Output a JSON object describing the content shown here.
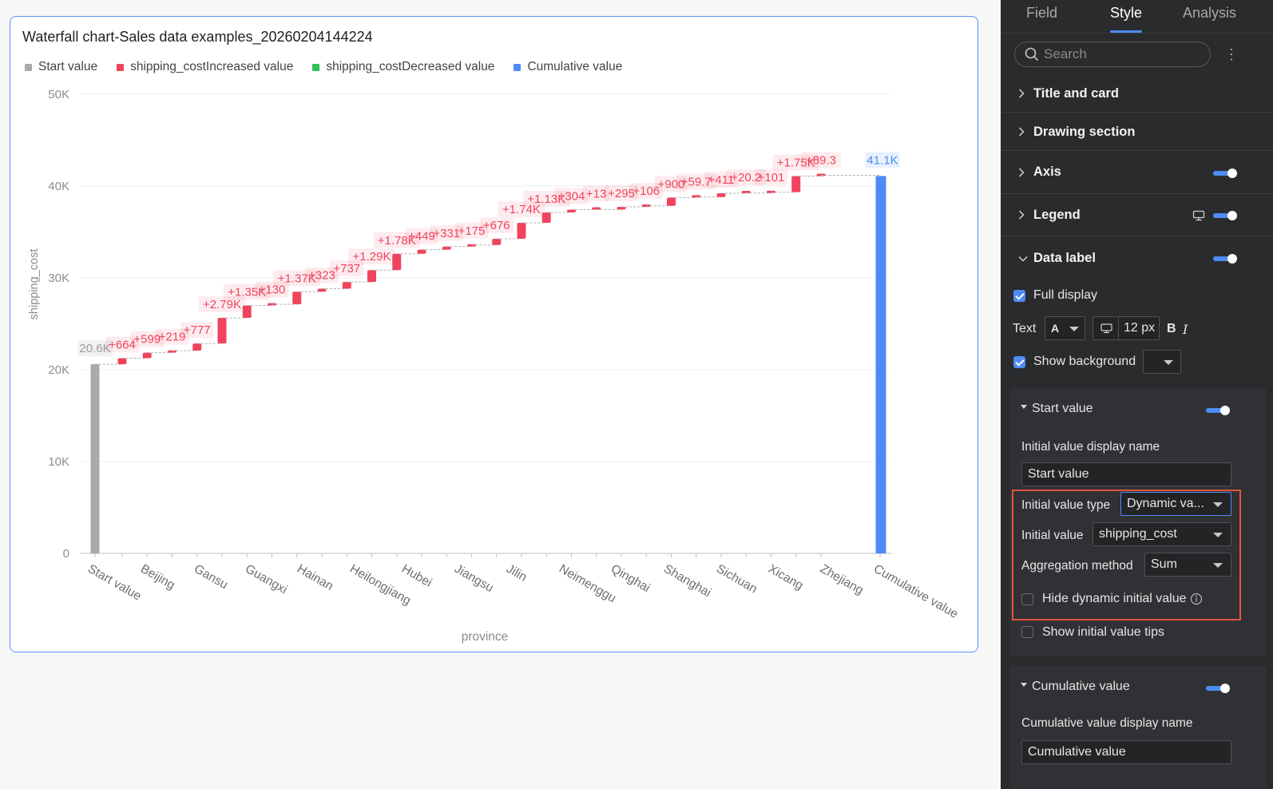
{
  "chart_card": {
    "title": "Waterfall chart-Sales data examples_20260204144224",
    "legend": [
      {
        "label": "Start value",
        "color": "#a9a9a9"
      },
      {
        "label": "shipping_costIncreased value",
        "color": "#f0445e"
      },
      {
        "label": "shipping_costDecreased value",
        "color": "#2fc25b"
      },
      {
        "label": "Cumulative value",
        "color": "#4d8cf5"
      }
    ]
  },
  "chart_data": {
    "type": "bar",
    "subtype": "waterfall",
    "xlabel": "province",
    "ylabel": "shipping_cost",
    "ylim": [
      0,
      50000
    ],
    "y_ticks": [
      "0",
      "10K",
      "20K",
      "30K",
      "40K",
      "50K"
    ],
    "y_tick_values": [
      0,
      10000,
      20000,
      30000,
      40000,
      50000
    ],
    "grid": true,
    "legend_position": "top-left",
    "categories": [
      "Start value",
      "Beijing",
      "Gansu",
      "Guangxi",
      "Hainan",
      "Heilongjiang",
      "Hubei",
      "Jiangsu",
      "Jilin",
      "Neimenggu",
      "Qinghai",
      "Shanghai",
      "Sichuan",
      "Xicang",
      "Zhejiang",
      "Cumulative value"
    ],
    "start_value": {
      "value": 20600,
      "label": "20.6K",
      "color": "#a9a9a9"
    },
    "increments": [
      {
        "value": 664,
        "label": "+664"
      },
      {
        "value": 599,
        "label": "+599"
      },
      {
        "value": 219,
        "label": "+219"
      },
      {
        "value": 777,
        "label": "+777"
      },
      {
        "value": 2790,
        "label": "+2.79K"
      },
      {
        "value": 1350,
        "label": "+1.35K"
      },
      {
        "value": 130,
        "label": "+130"
      },
      {
        "value": 1370,
        "label": "+1.37K"
      },
      {
        "value": 323,
        "label": "+323"
      },
      {
        "value": 737,
        "label": "+737"
      },
      {
        "value": 1290,
        "label": "+1.29K"
      },
      {
        "value": 1780,
        "label": "+1.78K"
      },
      {
        "value": 449,
        "label": "+449"
      },
      {
        "value": 331,
        "label": "+331"
      },
      {
        "value": 175,
        "label": "+175"
      },
      {
        "value": 676,
        "label": "+676"
      },
      {
        "value": 1740,
        "label": "+1.74K"
      },
      {
        "value": 1130,
        "label": "+1.13K"
      },
      {
        "value": 304,
        "label": "+304"
      },
      {
        "value": 13,
        "label": "+13"
      },
      {
        "value": 295,
        "label": "+295"
      },
      {
        "value": 106,
        "label": "+106"
      },
      {
        "value": 900,
        "label": "+900"
      },
      {
        "value": 59.7,
        "label": "+59.7"
      },
      {
        "value": 411,
        "label": "+411"
      },
      {
        "value": 20.2,
        "label": "+20.2"
      },
      {
        "value": 101,
        "label": "+101"
      },
      {
        "value": 1750,
        "label": "+1.75K"
      },
      {
        "value": 89.3,
        "label": "+89.3"
      }
    ],
    "increase_color": "#f0445e",
    "decrease_color": "#2fc25b",
    "cumulative_value": {
      "value": 41100,
      "label": "41.1K",
      "color": "#4d8cf5"
    }
  },
  "panel": {
    "tabs": [
      {
        "label": "Field"
      },
      {
        "label": "Style"
      },
      {
        "label": "Analysis"
      }
    ],
    "search_placeholder": "Search",
    "more_icon": "⋮",
    "sections": {
      "title_card": "Title and card",
      "drawing": "Drawing section",
      "axis": "Axis",
      "legend": "Legend",
      "data_label": "Data label"
    },
    "data_label": {
      "full_display": "Full display",
      "text_label": "Text",
      "font_glyph": "A",
      "font_size": "12 px",
      "bold": "B",
      "italic": "I",
      "show_background": "Show background"
    },
    "start_value": {
      "title": "Start value",
      "display_name_label": "Initial value display name",
      "display_name_value": "Start value",
      "type_label": "Initial value type",
      "type_value": "Dynamic va...",
      "initial_value_label": "Initial value",
      "initial_value_value": "shipping_cost",
      "aggregation_label": "Aggregation method",
      "aggregation_value": "Sum",
      "hide_dynamic": "Hide dynamic initial value",
      "show_tips": "Show initial value tips"
    },
    "cumulative_value": {
      "title": "Cumulative value",
      "display_name_label": "Cumulative value display name",
      "display_name_value": "Cumulative value"
    },
    "accent_color": "#4d8cf5",
    "highlight_color": "#e5533d"
  }
}
